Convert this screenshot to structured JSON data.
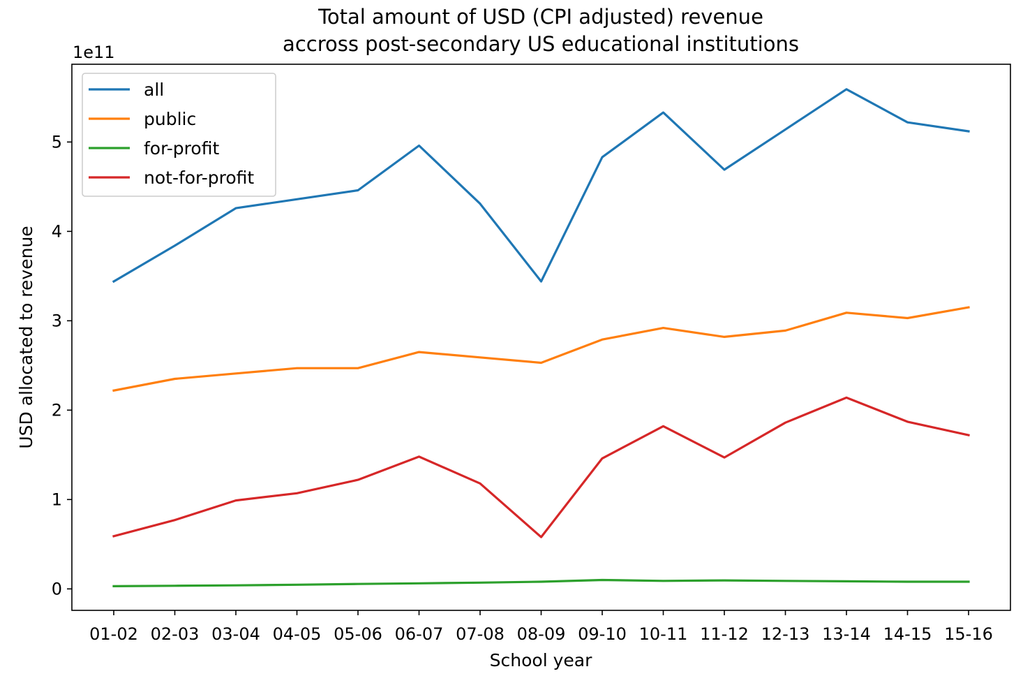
{
  "chart_data": {
    "type": "line",
    "title_lines": [
      "Total amount of USD (CPI adjusted) revenue",
      "accross post-secondary US educational institutions"
    ],
    "xlabel": "School year",
    "ylabel": "USD allocated to revenue",
    "y_offset_label": "1e11",
    "y_scale": 100000000000,
    "ylim": [
      -0.24,
      5.87
    ],
    "y_ticks": [
      0,
      1,
      2,
      3,
      4,
      5
    ],
    "y_tick_labels": [
      "0",
      "1",
      "2",
      "3",
      "4",
      "5"
    ],
    "categories": [
      "01-02",
      "02-03",
      "03-04",
      "04-05",
      "05-06",
      "06-07",
      "07-08",
      "08-09",
      "09-10",
      "10-11",
      "11-12",
      "12-13",
      "13-14",
      "14-15",
      "15-16"
    ],
    "grid": false,
    "legend_position": "top-left",
    "series": [
      {
        "name": "all",
        "color": "#1f77b4",
        "values": [
          3.44,
          3.84,
          4.26,
          4.36,
          4.46,
          4.96,
          4.31,
          3.44,
          4.83,
          5.33,
          4.69,
          5.14,
          5.59,
          5.22,
          5.12
        ]
      },
      {
        "name": "public",
        "color": "#ff7f0e",
        "values": [
          2.22,
          2.35,
          2.41,
          2.47,
          2.47,
          2.65,
          2.59,
          2.53,
          2.79,
          2.92,
          2.82,
          2.89,
          3.09,
          3.03,
          3.15
        ]
      },
      {
        "name": "for-profit",
        "color": "#2ca02c",
        "values": [
          0.03,
          0.035,
          0.04,
          0.047,
          0.055,
          0.062,
          0.07,
          0.08,
          0.1,
          0.09,
          0.095,
          0.09,
          0.085,
          0.08,
          0.08
        ]
      },
      {
        "name": "not-for-profit",
        "color": "#d62728",
        "values": [
          0.59,
          0.77,
          0.99,
          1.07,
          1.22,
          1.48,
          1.18,
          0.58,
          1.46,
          1.82,
          1.47,
          1.86,
          2.14,
          1.87,
          1.72
        ]
      }
    ]
  }
}
